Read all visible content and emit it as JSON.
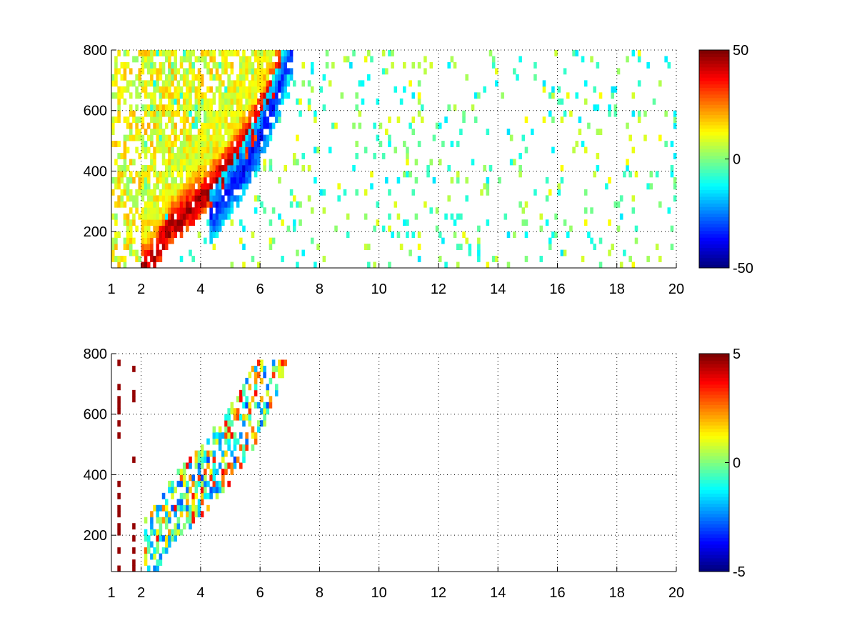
{
  "chart_data": [
    {
      "type": "heatmap",
      "title": "",
      "xlabel": "",
      "ylabel": "",
      "xlim": [
        1,
        20
      ],
      "ylim": [
        80,
        800
      ],
      "x_ticks": [
        1,
        2,
        4,
        6,
        8,
        10,
        12,
        14,
        16,
        18,
        20
      ],
      "y_ticks": [
        200,
        400,
        600,
        800
      ],
      "grid": true,
      "grid_style": "dotted",
      "colormap": "jet",
      "colorbar": {
        "limits": [
          -50,
          50
        ],
        "ticks": [
          50,
          0,
          -50
        ]
      },
      "features": {
        "ridge": {
          "x_range": [
            2.0,
            7.0
          ],
          "y_range": [
            80,
            800
          ],
          "description_values": "positive values up to ~45 along the lower-right edge of the band"
        },
        "trough": {
          "x_range": [
            4.2,
            7.0
          ],
          "y_range": [
            250,
            750
          ],
          "peak_value": -35
        },
        "scatter_background_x_range": [
          1,
          20
        ],
        "scatter_background_value_range": [
          -15,
          10
        ]
      }
    },
    {
      "type": "heatmap",
      "title": "",
      "xlabel": "",
      "ylabel": "",
      "xlim": [
        1,
        20
      ],
      "ylim": [
        80,
        800
      ],
      "x_ticks": [
        1,
        2,
        4,
        6,
        8,
        10,
        12,
        14,
        16,
        18,
        20
      ],
      "y_ticks": [
        200,
        400,
        600,
        800
      ],
      "grid": true,
      "grid_style": "dotted",
      "colormap": "jet",
      "colorbar": {
        "limits": [
          -5,
          5
        ],
        "ticks": [
          5,
          0,
          -5
        ]
      },
      "features": {
        "band": {
          "x_range": [
            2.0,
            7.0
          ],
          "y_range": [
            80,
            800
          ],
          "value_range": [
            -4,
            4
          ]
        },
        "vertical_streaks_x": [
          1.3,
          1.8
        ],
        "vertical_streak_value": 5
      }
    }
  ],
  "colors": {
    "axes": "#000000",
    "grid": "#000000",
    "background": "#ffffff"
  }
}
